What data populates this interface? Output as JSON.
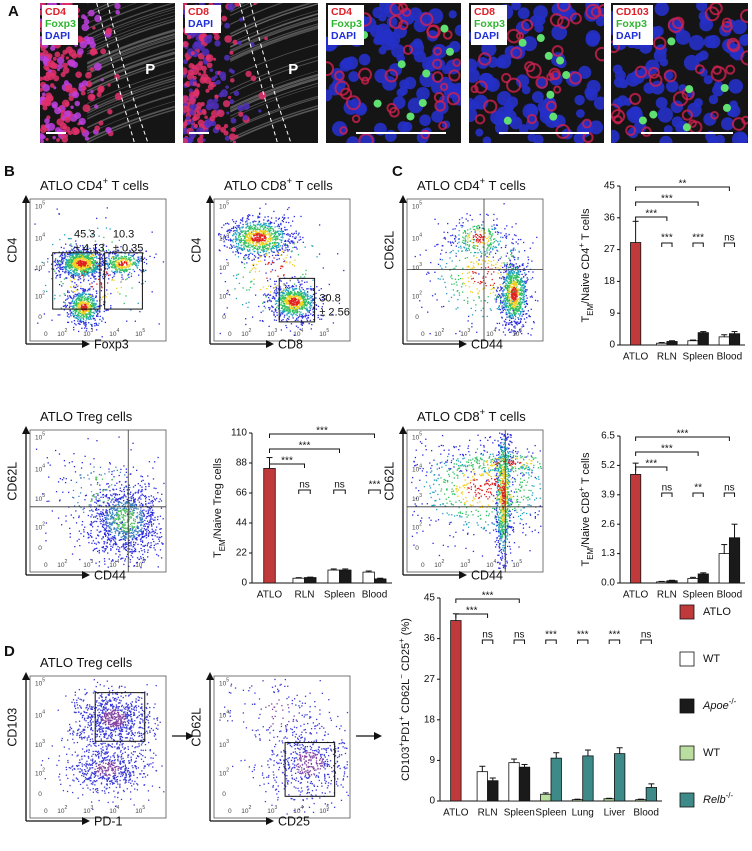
{
  "panel_labels": [
    "A",
    "B",
    "C",
    "D"
  ],
  "images": [
    {
      "channels": [
        {
          "text": "CD4",
          "color": "#e0202a"
        },
        {
          "text": "Foxp3",
          "color": "#2fb52f"
        },
        {
          "text": "DAPI",
          "color": "#2030d8"
        }
      ],
      "region": "P"
    },
    {
      "channels": [
        {
          "text": "CD8",
          "color": "#e0202a"
        },
        {
          "text": "DAPI",
          "color": "#2030d8"
        }
      ],
      "region": "P"
    },
    {
      "channels": [
        {
          "text": "CD4",
          "color": "#e0202a"
        },
        {
          "text": "Foxp3",
          "color": "#2fb52f"
        },
        {
          "text": "DAPI",
          "color": "#2030d8"
        }
      ]
    },
    {
      "channels": [
        {
          "text": "CD8",
          "color": "#e0202a"
        },
        {
          "text": "Foxp3",
          "color": "#2fb52f"
        },
        {
          "text": "DAPI",
          "color": "#2030d8"
        }
      ]
    },
    {
      "channels": [
        {
          "text": "CD103",
          "color": "#e0202a"
        },
        {
          "text": "Foxp3",
          "color": "#2fb52f"
        },
        {
          "text": "DAPI",
          "color": "#2030d8"
        }
      ]
    }
  ],
  "flow_tick_labels": [
    {
      "base": "0"
    },
    {
      "base": "10",
      "exp": "2"
    },
    {
      "base": "10",
      "exp": "3"
    },
    {
      "base": "10",
      "exp": "4"
    },
    {
      "base": "10",
      "exp": "5"
    }
  ],
  "flow_plots": [
    {
      "title": [
        {
          "text": "ATLO CD4"
        },
        {
          "text": "+",
          "sup": true
        },
        {
          "text": " T cells"
        }
      ],
      "xlabel": "Foxp3",
      "ylabel": "CD4",
      "gates": [
        {
          "lines": [
            "45.3",
            "± 4.13"
          ]
        },
        {
          "lines": [
            "10.3",
            "± 0.35"
          ]
        }
      ]
    },
    {
      "title": [
        {
          "text": "ATLO CD8"
        },
        {
          "text": "+",
          "sup": true
        },
        {
          "text": " T cells"
        }
      ],
      "xlabel": "CD8",
      "ylabel": "CD4",
      "gates": [
        {
          "lines": [
            "30.8",
            "± 2.56"
          ]
        }
      ]
    },
    {
      "title": [
        {
          "text": "ATLO CD4"
        },
        {
          "text": "+",
          "sup": true
        },
        {
          "text": " T cells"
        }
      ],
      "xlabel": "CD44",
      "ylabel": "CD62L",
      "gates": []
    },
    {
      "title": [
        {
          "text": "ATLO Treg cells"
        }
      ],
      "xlabel": "CD44",
      "ylabel": "CD62L",
      "gates": []
    },
    {
      "title": [
        {
          "text": "ATLO CD8"
        },
        {
          "text": "+",
          "sup": true
        },
        {
          "text": " T cells"
        }
      ],
      "xlabel": "CD44",
      "ylabel": "CD62L",
      "gates": []
    },
    {
      "title": [
        {
          "text": "ATLO Treg cells"
        }
      ],
      "xlabel": "PD-1",
      "ylabel": "CD103",
      "gates": []
    },
    {
      "xlabel": "CD25",
      "ylabel": "CD62L",
      "gates": []
    }
  ],
  "chart_data": [
    {
      "type": "bar",
      "ylabel": [
        {
          "text": "T"
        },
        {
          "text": "EM",
          "sub": true
        },
        {
          "text": "/Naive CD4"
        },
        {
          "text": "+",
          "sup": true
        },
        {
          "text": " T cells"
        }
      ],
      "categories": [
        "ATLO",
        "RLN",
        "Spleen",
        "Blood"
      ],
      "series": [
        {
          "color": "#c0393b",
          "values": [
            29,
            null,
            null,
            null
          ],
          "errors": [
            6,
            null,
            null,
            null
          ]
        },
        {
          "color": "#ffffff",
          "values": [
            null,
            0.5,
            1.2,
            2.3
          ],
          "errors": [
            null,
            0.2,
            0.2,
            0.6
          ]
        },
        {
          "color": "#1a1a1a",
          "values": [
            null,
            1.0,
            3.5,
            3.2
          ],
          "errors": [
            null,
            0.2,
            0.3,
            0.6
          ]
        }
      ],
      "ylim": [
        0,
        45
      ],
      "yticks": [
        0,
        9,
        18,
        27,
        36,
        45
      ],
      "brackets": [
        {
          "groups": [
            0,
            1
          ],
          "label": "***"
        },
        {
          "groups": [
            0,
            2
          ],
          "label": "***"
        },
        {
          "groups": [
            0,
            3
          ],
          "label": "**"
        }
      ],
      "pair_labels": [
        null,
        "***",
        "***",
        "ns"
      ]
    },
    {
      "type": "bar",
      "ylabel": [
        {
          "text": "T"
        },
        {
          "text": "EM",
          "sub": true
        },
        {
          "text": "/Naive Treg cells"
        }
      ],
      "categories": [
        "ATLO",
        "RLN",
        "Spleen",
        "Blood"
      ],
      "series": [
        {
          "color": "#c0393b",
          "values": [
            84,
            null,
            null,
            null
          ],
          "errors": [
            8,
            null,
            null,
            null
          ]
        },
        {
          "color": "#ffffff",
          "values": [
            null,
            3.5,
            9.5,
            8
          ],
          "errors": [
            null,
            0.4,
            0.8,
            0.8
          ]
        },
        {
          "color": "#1a1a1a",
          "values": [
            null,
            4,
            9.5,
            3
          ],
          "errors": [
            null,
            0.3,
            0.8,
            0.5
          ]
        }
      ],
      "ylim": [
        0,
        110
      ],
      "yticks": [
        0,
        22,
        44,
        66,
        88,
        110
      ],
      "brackets": [
        {
          "groups": [
            0,
            1
          ],
          "label": "***"
        },
        {
          "groups": [
            0,
            2
          ],
          "label": "***"
        },
        {
          "groups": [
            0,
            3
          ],
          "label": "***"
        }
      ],
      "pair_labels": [
        null,
        "ns",
        "ns",
        "***"
      ]
    },
    {
      "type": "bar",
      "ylabel": [
        {
          "text": "T"
        },
        {
          "text": "EM",
          "sub": true
        },
        {
          "text": "/Naive CD8"
        },
        {
          "text": "+",
          "sup": true
        },
        {
          "text": " T cells"
        }
      ],
      "categories": [
        "ATLO",
        "RLN",
        "Spleen",
        "Blood"
      ],
      "series": [
        {
          "color": "#c0393b",
          "values": [
            4.8,
            null,
            null,
            null
          ],
          "errors": [
            0.5,
            null,
            null,
            null
          ]
        },
        {
          "color": "#ffffff",
          "values": [
            null,
            0.05,
            0.2,
            1.3
          ],
          "errors": [
            null,
            0.02,
            0.05,
            0.4
          ]
        },
        {
          "color": "#1a1a1a",
          "values": [
            null,
            0.1,
            0.4,
            2.0
          ],
          "errors": [
            null,
            0.02,
            0.05,
            0.6
          ]
        }
      ],
      "ylim": [
        0,
        6.5
      ],
      "yticks": [
        {
          "value": 0,
          "label": "0.0"
        },
        1.3,
        2.6,
        3.9,
        5.2,
        6.5
      ],
      "brackets": [
        {
          "groups": [
            0,
            1
          ],
          "label": "***"
        },
        {
          "groups": [
            0,
            2
          ],
          "label": "***"
        },
        {
          "groups": [
            0,
            3
          ],
          "label": "***"
        }
      ],
      "pair_labels": [
        null,
        "ns",
        "**",
        "ns"
      ]
    },
    {
      "type": "bar",
      "ylabel": [
        {
          "text": "CD103"
        },
        {
          "text": "+",
          "sup": true
        },
        {
          "text": "PD1"
        },
        {
          "text": "+",
          "sup": true
        },
        {
          "text": " CD62L"
        },
        {
          "text": "−",
          "sup": true
        },
        {
          "text": " CD25"
        },
        {
          "text": "+",
          "sup": true
        },
        {
          "text": " (%)"
        }
      ],
      "categories": [
        "ATLO",
        "RLN",
        "Spleen",
        "Spleen",
        "Lung",
        "Liver",
        "Blood"
      ],
      "series": [
        {
          "name": "ATLO",
          "color": "#c0393b",
          "values": [
            40,
            null,
            null,
            null,
            null,
            null,
            null
          ],
          "errors": [
            1.5,
            null,
            null,
            null,
            null,
            null,
            null
          ]
        },
        {
          "name": "WT",
          "color": "#ffffff",
          "values": [
            null,
            6.5,
            8.5,
            null,
            null,
            null,
            null
          ],
          "errors": [
            null,
            1.2,
            0.8,
            null,
            null,
            null,
            null
          ]
        },
        {
          "name": "Apoe",
          "name_sup": "-/-",
          "italic": true,
          "color": "#1a1a1a",
          "values": [
            null,
            4.5,
            7.5,
            null,
            null,
            null,
            null
          ],
          "errors": [
            null,
            0.6,
            0.6,
            null,
            null,
            null,
            null
          ]
        },
        {
          "name": "WT",
          "color": "#b9dea0",
          "values": [
            null,
            null,
            null,
            1.5,
            0.3,
            0.5,
            0.3
          ],
          "errors": [
            null,
            null,
            null,
            0.3,
            0.1,
            0.1,
            0.1
          ]
        },
        {
          "name": "Relb",
          "name_sup": "-/-",
          "italic": true,
          "color": "#3d8a88",
          "values": [
            null,
            null,
            null,
            9.5,
            10,
            10.5,
            3
          ],
          "errors": [
            null,
            null,
            null,
            1.2,
            1.3,
            1.3,
            0.8
          ]
        }
      ],
      "ylim": [
        0,
        45
      ],
      "yticks": [
        0,
        9,
        18,
        27,
        36,
        45
      ],
      "brackets": [
        {
          "groups": [
            0,
            1
          ],
          "label": "***"
        },
        {
          "groups": [
            0,
            2
          ],
          "label": "***"
        }
      ],
      "pair_labels": [
        null,
        "ns",
        "ns",
        "***",
        "***",
        "***",
        "ns"
      ],
      "legend": true
    }
  ]
}
